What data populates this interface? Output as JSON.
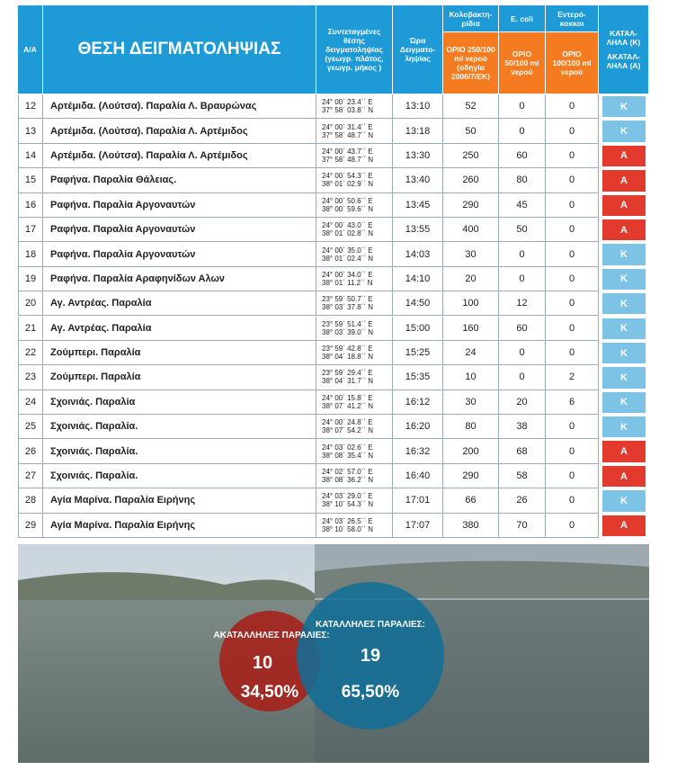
{
  "header": {
    "id": "Α/Α",
    "location": "ΘΕΣΗ ΔΕΙΓΜΑΤΟΛΗΨΙΑΣ",
    "coords": "Συντεταγμένες θέσης δειγματοληψίας (γεωγρ. πλάτος, γεωγρ. μήκος )",
    "time": "Ώρα Δειγματο-ληψίας",
    "coli": "Κολοβακτη-ρίδια",
    "ecoli": "E. coli",
    "entero": "Εντερό-κοκκοι",
    "verdict_ok": "ΚΑΤΑΛ-ΛΗΛΑ (Κ)",
    "verdict_bad": "ΑΚΑΤΑΛ-ΛΗΛΑ (Α)",
    "coli_limit": "ΟΡΙΟ 250/100 ml νερού (οδηγία 2006/7/ΕΚ)",
    "ecoli_limit": "ΟΡΙΟ 50/100 ml νερού",
    "entero_limit": "ΟΡΙΟ 100/100 ml νερού"
  },
  "table": {
    "rows": [
      [
        12,
        "Αρτέμιδα. (Λούτσα). Παραλία Λ. Βραυρώνας",
        [
          "24° 00΄ 23.4΄΄ Ε",
          "37° 58΄ 03.8΄΄ Ν"
        ],
        "13:10",
        52,
        0,
        0,
        "Κ"
      ],
      [
        13,
        "Αρτέμιδα. (Λούτσα). Παραλία Λ. Αρτέμιδος",
        [
          "24° 00΄ 31.4΄΄ Ε",
          "37° 58΄ 48.7΄΄ Ν"
        ],
        "13:18",
        50,
        0,
        0,
        "Κ"
      ],
      [
        14,
        "Αρτέμιδα. (Λούτσα). Παραλία Λ. Αρτέμιδος",
        [
          "24° 00΄ 43.7΄΄ Ε",
          "37° 58΄ 48.7΄΄ Ν"
        ],
        "13:30",
        250,
        60,
        0,
        "Α"
      ],
      [
        15,
        "Ραφήνα. Παραλία Θάλειας.",
        [
          "24° 00΄ 54.3΄΄ Ε",
          "38° 01΄ 02.9΄΄ Ν"
        ],
        "13:40",
        260,
        80,
        0,
        "Α"
      ],
      [
        16,
        "Ραφήνα. Παραλία Αργοναυτών",
        [
          "24° 00΄ 50.6΄΄ Ε",
          "38° 00΄ 59.6΄΄ Ν"
        ],
        "13:45",
        290,
        45,
        0,
        "Α"
      ],
      [
        17,
        "Ραφήνα. Παραλία Αργοναυτών",
        [
          "24° 00΄ 43.0΄΄ Ε",
          "38° 01΄ 02.8΄΄ Ν"
        ],
        "13:55",
        400,
        50,
        0,
        "Α"
      ],
      [
        18,
        "Ραφήνα. Παραλία Αργοναυτών",
        [
          "24° 00΄ 35.0΄΄ Ε",
          "38° 01΄ 02.4΄΄ Ν"
        ],
        "14:03",
        30,
        0,
        0,
        "Κ"
      ],
      [
        19,
        "Ραφήνα. Παραλία Αραφηνίδων Αλων",
        [
          "24° 00΄ 34.0΄΄ Ε",
          "38° 01΄ 11.2΄΄ Ν"
        ],
        "14:10",
        20,
        0,
        0,
        "Κ"
      ],
      [
        20,
        "Αγ. Αντρέας. Παραλία",
        [
          "23° 59΄ 50.7΄΄ Ε",
          "38° 03΄ 37.8΄΄ Ν"
        ],
        "14:50",
        100,
        12,
        0,
        "Κ"
      ],
      [
        21,
        "Αγ. Αντρέας. Παραλία",
        [
          "23° 59΄ 51.4΄΄ Ε",
          "38° 03΄ 39.0΄΄ Ν"
        ],
        "15:00",
        160,
        60,
        0,
        "Κ"
      ],
      [
        22,
        "Ζούμπερι. Παραλία",
        [
          "23° 59΄ 42.8΄΄ Ε",
          "38° 04΄ 18.8΄΄ Ν"
        ],
        "15:25",
        24,
        0,
        0,
        "Κ"
      ],
      [
        23,
        "Ζούμπερι. Παραλία",
        [
          "23° 59΄ 29.4΄΄ Ε",
          "38° 04΄ 31.7΄΄ Ν"
        ],
        "15:35",
        10,
        0,
        2,
        "Κ"
      ],
      [
        24,
        "Σχοινιάς. Παραλία",
        [
          "24° 00΄ 15.8΄΄ Ε",
          "38° 07΄ 41.2΄΄ Ν"
        ],
        "16:12",
        30,
        20,
        6,
        "Κ"
      ],
      [
        25,
        "Σχοινιάς. Παραλία.",
        [
          "24° 00΄ 24.8΄΄ Ε",
          "38° 07΄ 54.2΄΄ Ν"
        ],
        "16:20",
        80,
        38,
        0,
        "Κ"
      ],
      [
        26,
        "Σχοινιάς. Παραλία.",
        [
          "24° 03΄ 02.6΄΄ Ε",
          "38° 08΄ 35.4΄΄ Ν"
        ],
        "16:32",
        200,
        68,
        0,
        "Α"
      ],
      [
        27,
        "Σχοινιάς. Παραλία.",
        [
          "24° 02΄ 57.0΄΄ Ε",
          "38° 08΄ 36.2΄΄ Ν"
        ],
        "16:40",
        290,
        58,
        0,
        "Α"
      ],
      [
        28,
        "Αγία Μαρίνα. Παραλία Ειρήνης",
        [
          "24° 03΄ 29.0΄΄ Ε",
          "38° 10΄ 54.3΄΄ Ν"
        ],
        "17:01",
        66,
        26,
        0,
        "Κ"
      ],
      [
        29,
        "Αγία Μαρίνα. Παραλία Ειρήνης",
        [
          "24° 03΄ 26.5΄΄ Ε",
          "38° 10΄ 58.0΄΄ Ν"
        ],
        "17:07",
        380,
        70,
        0,
        "Α"
      ]
    ]
  },
  "summary": {
    "bad": {
      "label": "ΑΚΑΤΑΛΛΗΛΕΣ ΠΑΡΑΛΙΕΣ:",
      "count": 10,
      "percent": "34,50%"
    },
    "good": {
      "label": "ΚΑΤΑΛΛΗΛΕΣ ΠΑΡΑΛΙΕΣ:",
      "count": 19,
      "percent": "65,50%"
    }
  }
}
